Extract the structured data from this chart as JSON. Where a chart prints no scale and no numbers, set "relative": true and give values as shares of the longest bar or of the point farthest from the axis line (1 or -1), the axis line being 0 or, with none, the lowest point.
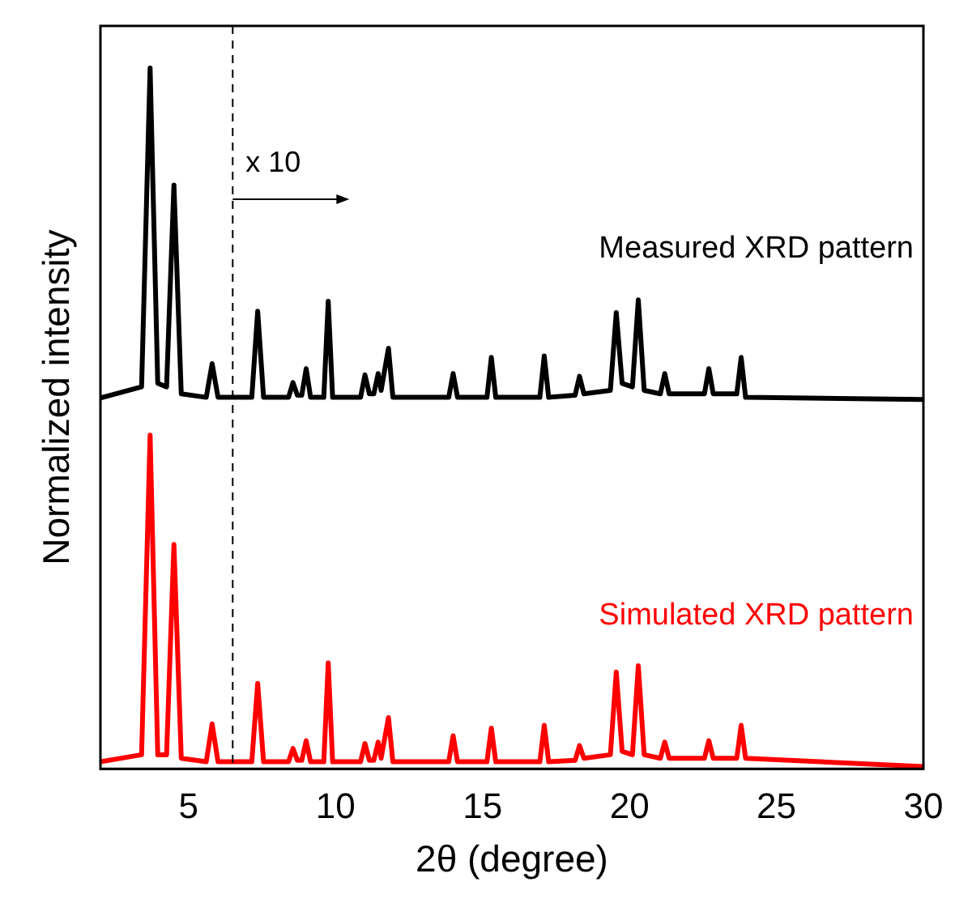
{
  "chart_data": {
    "type": "line",
    "relative": true,
    "xlabel": "2θ (degree)",
    "ylabel": "Normalized intensity",
    "xlim": [
      2,
      30
    ],
    "xticks": [
      5,
      10,
      15,
      20,
      25,
      30
    ],
    "tick_labels": "x",
    "grid": false,
    "legend": false,
    "marker": "none",
    "line_style": "solid",
    "ref_lines": [
      {
        "axis": "x",
        "value": 6.5,
        "label": "x 10",
        "line_style": "dashed",
        "color": "#000000"
      }
    ],
    "series": [
      {
        "name": "Measured XRD pattern",
        "color": "#000000",
        "x": [
          2,
          3.4,
          3.69,
          3.95,
          4.25,
          4.5,
          4.75,
          5.6,
          5.8,
          6.0,
          7.15,
          7.35,
          7.55,
          8.4,
          8.55,
          8.7,
          8.85,
          9.0,
          9.15,
          9.6,
          9.75,
          9.9,
          10.85,
          11.0,
          11.15,
          11.3,
          11.45,
          11.55,
          11.8,
          11.95,
          13.85,
          14.0,
          14.15,
          15.15,
          15.3,
          15.45,
          16.95,
          17.1,
          17.25,
          18.15,
          18.3,
          18.45,
          19.35,
          19.55,
          19.75,
          20.1,
          20.3,
          20.5,
          21.05,
          21.2,
          21.35,
          22.55,
          22.7,
          22.85,
          23.65,
          23.8,
          23.95,
          30
        ],
        "values": [
          0.529,
          0.545,
          1.0,
          0.55,
          0.545,
          0.833,
          0.535,
          0.53,
          0.578,
          0.53,
          0.53,
          0.653,
          0.53,
          0.53,
          0.551,
          0.533,
          0.533,
          0.571,
          0.53,
          0.53,
          0.667,
          0.53,
          0.53,
          0.562,
          0.535,
          0.535,
          0.564,
          0.54,
          0.6,
          0.53,
          0.53,
          0.564,
          0.53,
          0.53,
          0.587,
          0.53,
          0.53,
          0.589,
          0.53,
          0.533,
          0.56,
          0.535,
          0.54,
          0.651,
          0.55,
          0.545,
          0.669,
          0.54,
          0.535,
          0.564,
          0.535,
          0.535,
          0.571,
          0.535,
          0.535,
          0.587,
          0.53,
          0.527
        ]
      },
      {
        "name": "Simulated XRD pattern",
        "color": "#ff0000",
        "x": [
          2,
          3.4,
          3.69,
          3.95,
          4.25,
          4.5,
          4.75,
          5.6,
          5.8,
          6.0,
          7.15,
          7.35,
          7.55,
          8.4,
          8.55,
          8.7,
          8.85,
          9.0,
          9.15,
          9.6,
          9.75,
          9.9,
          10.85,
          11.0,
          11.15,
          11.3,
          11.45,
          11.55,
          11.8,
          11.95,
          13.85,
          14.0,
          14.15,
          15.15,
          15.3,
          15.45,
          16.95,
          17.1,
          17.25,
          18.15,
          18.3,
          18.45,
          19.35,
          19.55,
          19.75,
          20.1,
          20.3,
          20.5,
          21.05,
          21.2,
          21.35,
          22.55,
          22.7,
          22.85,
          23.65,
          23.8,
          23.95,
          30
        ],
        "values": [
          0.01,
          0.02,
          0.476,
          0.02,
          0.02,
          0.32,
          0.015,
          0.01,
          0.064,
          0.01,
          0.01,
          0.122,
          0.01,
          0.01,
          0.029,
          0.012,
          0.012,
          0.04,
          0.01,
          0.01,
          0.151,
          0.01,
          0.01,
          0.036,
          0.012,
          0.012,
          0.038,
          0.015,
          0.073,
          0.01,
          0.01,
          0.047,
          0.01,
          0.01,
          0.058,
          0.01,
          0.01,
          0.062,
          0.01,
          0.012,
          0.033,
          0.015,
          0.02,
          0.138,
          0.025,
          0.02,
          0.147,
          0.02,
          0.015,
          0.038,
          0.015,
          0.015,
          0.04,
          0.015,
          0.015,
          0.062,
          0.015,
          0.003
        ]
      }
    ]
  }
}
